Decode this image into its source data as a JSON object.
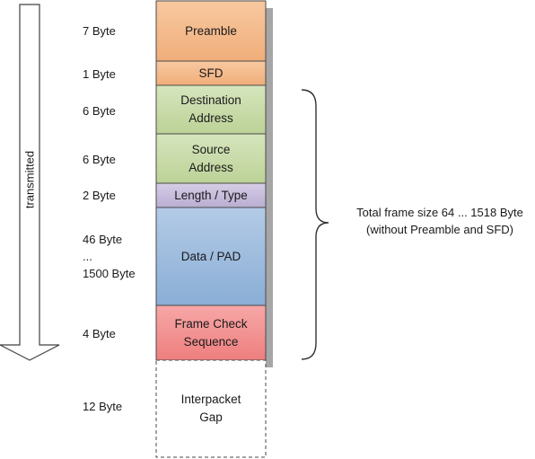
{
  "direction": {
    "label": "transmitted"
  },
  "segments": [
    {
      "name": "preamble",
      "label": "Preamble",
      "size": "7 Byte",
      "color": "#f4b183"
    },
    {
      "name": "sfd",
      "label": "SFD",
      "size": "1 Byte",
      "color": "#f4b183"
    },
    {
      "name": "destination-address",
      "label": "Destination Address",
      "size": "6 Byte",
      "color": "#c5d9a4"
    },
    {
      "name": "source-address",
      "label": "Source Address",
      "size": "6 Byte",
      "color": "#c5d9a4"
    },
    {
      "name": "length-type",
      "label": "Length / Type",
      "size": "2 Byte",
      "color": "#c3b8d8"
    },
    {
      "name": "data-pad",
      "label": "Data / PAD",
      "size_lines": [
        "46 Byte",
        "...",
        "1500 Byte"
      ],
      "color": "#9dbbdc"
    },
    {
      "name": "frame-check-sequence",
      "label": "Frame Check Sequence",
      "size": "4 Byte",
      "color": "#f08c8c"
    },
    {
      "name": "interpacket-gap",
      "label": "Interpacket Gap",
      "size": "12 Byte",
      "color": "#ffffff"
    }
  ],
  "total_note": {
    "line1": "Total frame size 64 ... 1518 Byte",
    "line2": "(without Preamble and SFD)"
  }
}
